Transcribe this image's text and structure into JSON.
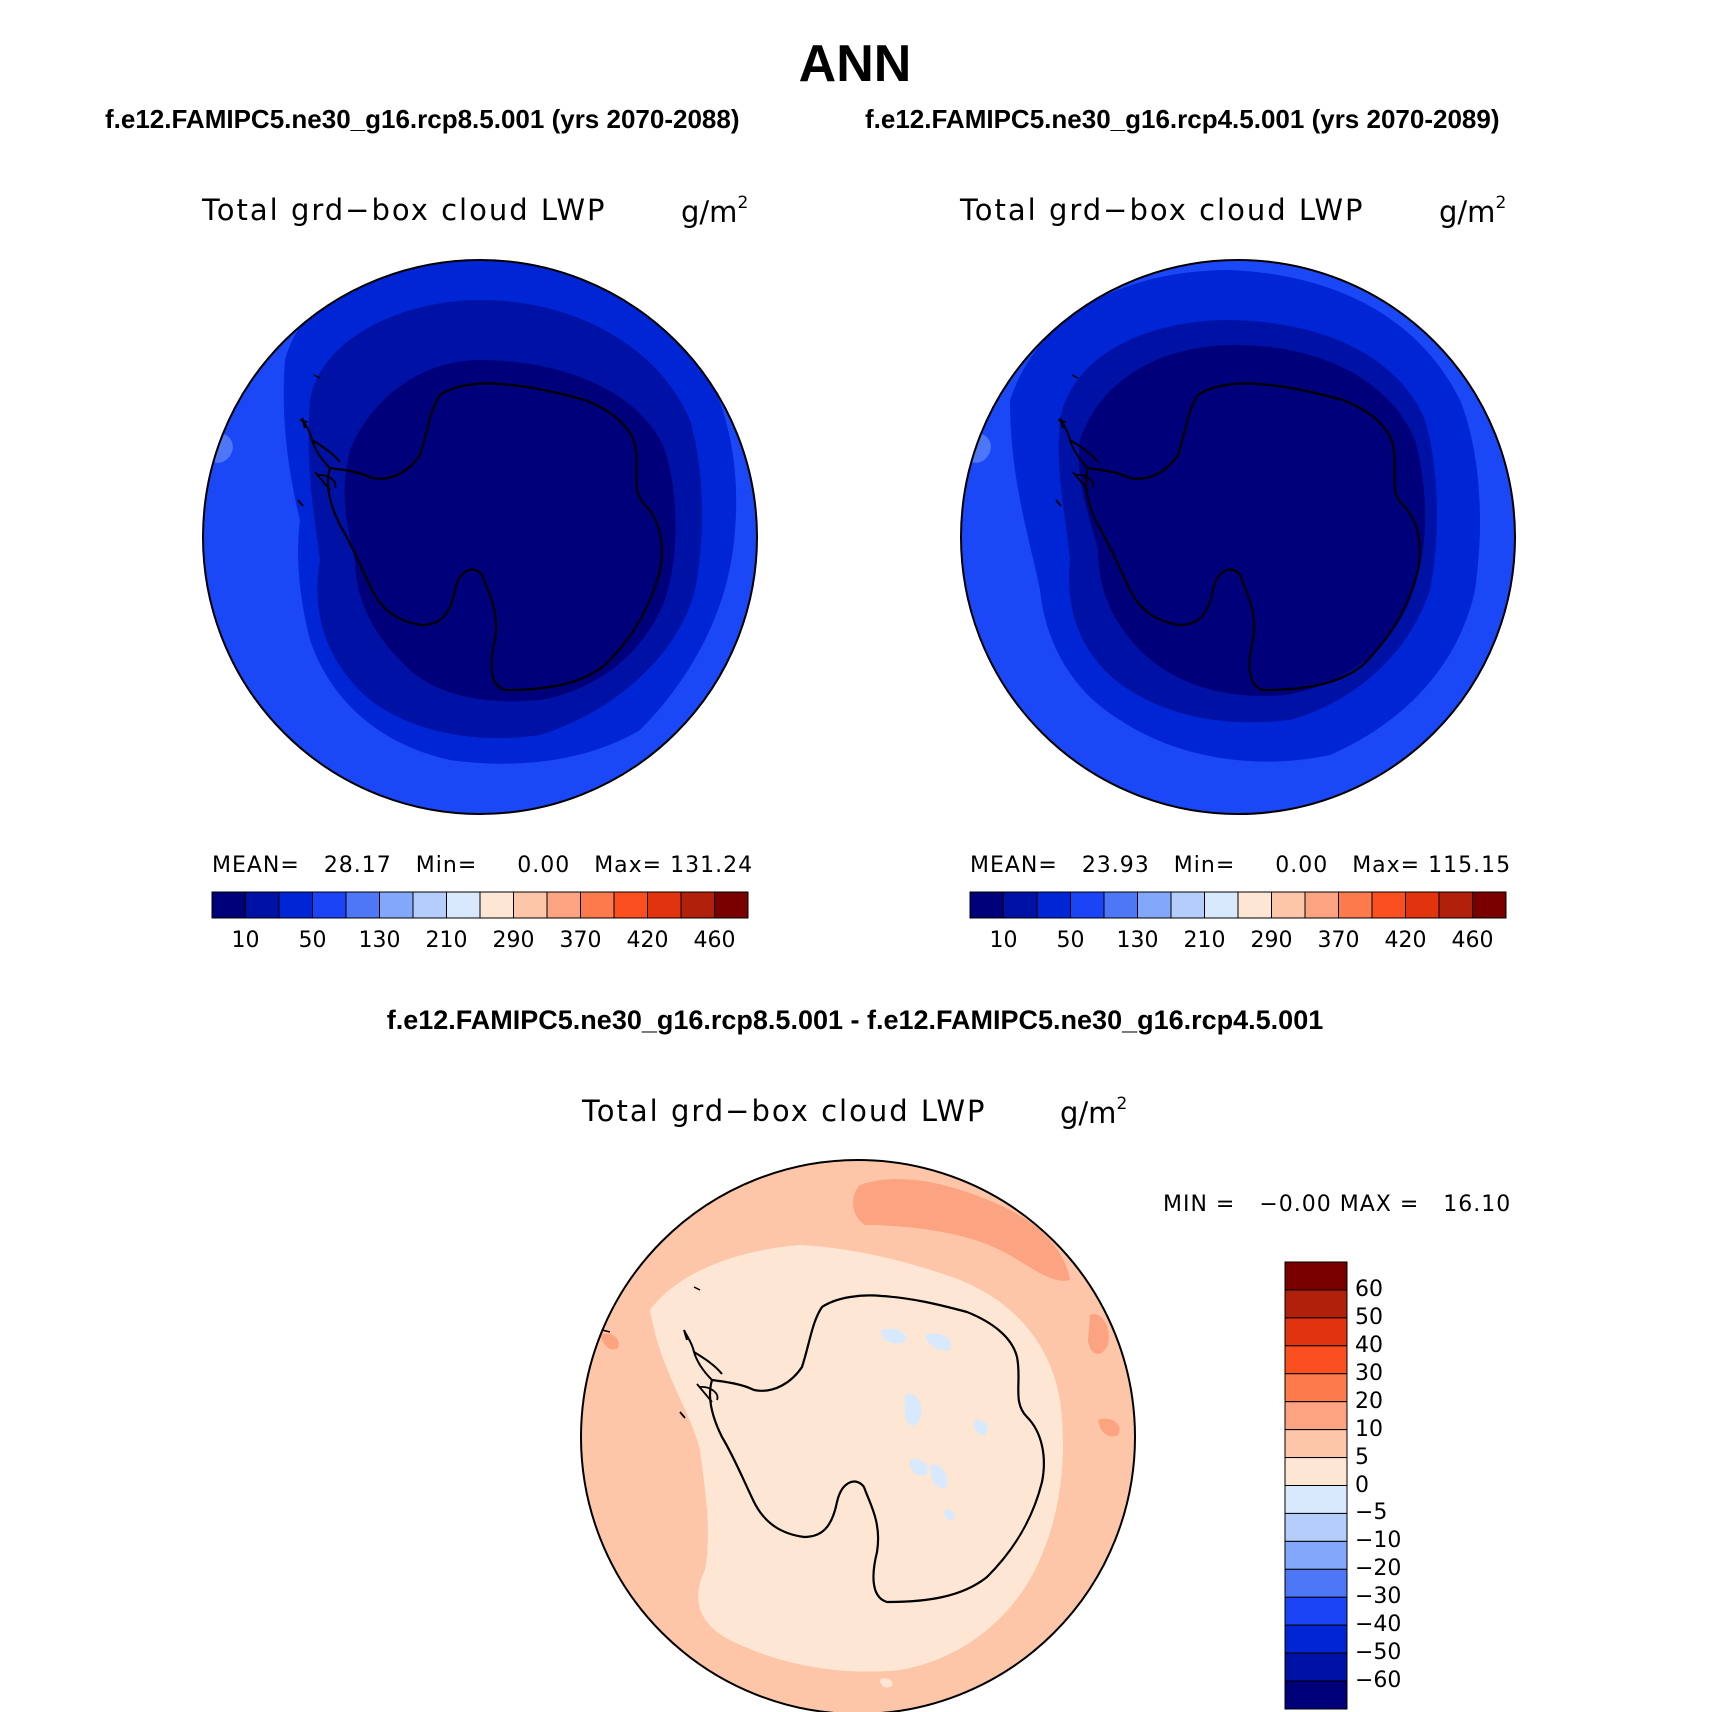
{
  "season": "ANN",
  "case1_label": "f.e12.FAMIPC5.ne30_g16.rcp8.5.001 (yrs 2070-2088)",
  "case2_label": "f.e12.FAMIPC5.ne30_g16.rcp4.5.001 (yrs 2070-2089)",
  "diff_title": "f.e12.FAMIPC5.ne30_g16.rcp8.5.001 - f.e12.FAMIPC5.ne30_g16.rcp4.5.001",
  "variable_label": "Total grd−box cloud LWP",
  "units_base": "g/m",
  "units_exp": "2",
  "panel1": {
    "mean_label": "MEAN=",
    "mean": "28.17",
    "min_label": "Min=",
    "min": "0.00",
    "max_label": "Max=",
    "max": "131.24"
  },
  "panel2": {
    "mean_label": "MEAN=",
    "mean": "23.93",
    "min_label": "Min=",
    "min": "0.00",
    "max_label": "Max=",
    "max": "115.15"
  },
  "panel3": {
    "min_label": "MIN =",
    "min": "−0.00",
    "max_label": "MAX =",
    "max": "16.10"
  },
  "abs_colorbar": {
    "colors": [
      "#00007a",
      "#0011a6",
      "#0025d4",
      "#1a44f5",
      "#4d77f7",
      "#83a8fa",
      "#b5cdfb",
      "#d8e9fd",
      "#fde6d3",
      "#fdc6a9",
      "#fca482",
      "#fc7a4c",
      "#fb4f20",
      "#e0330e",
      "#b0200a",
      "#7a0000"
    ],
    "tick_labels": [
      "10",
      "50",
      "130",
      "210",
      "290",
      "370",
      "420",
      "460"
    ]
  },
  "diff_colorbar": {
    "colors_top_to_bottom": [
      "#7a0000",
      "#b0200a",
      "#e0330e",
      "#fb4f20",
      "#fc7a4c",
      "#fca482",
      "#fdc6a9",
      "#fde6d3",
      "#d8e9fd",
      "#b5cdfb",
      "#83a8fa",
      "#4d77f7",
      "#1a44f5",
      "#0025d4",
      "#0011a6",
      "#00007a"
    ],
    "tick_labels": [
      "60",
      "50",
      "40",
      "30",
      "20",
      "10",
      "5",
      "0",
      "−5",
      "−10",
      "−20",
      "−30",
      "−40",
      "−50",
      "−60"
    ]
  },
  "map_colors": {
    "lwp_10_50": "#1b48f7",
    "lwp_0_10_outer": "#0025d4",
    "lwp_0_10_mid": "#0011a6",
    "lwp_lt_0": "#00007a",
    "lwp_50_130_patch": "#4d77f7",
    "diff_5_10": "#fdc6a9",
    "diff_0_5": "#fde6d3",
    "diff_10_20": "#fca482",
    "diff_neg": "#d8e9fd",
    "coastline": "#000000"
  }
}
